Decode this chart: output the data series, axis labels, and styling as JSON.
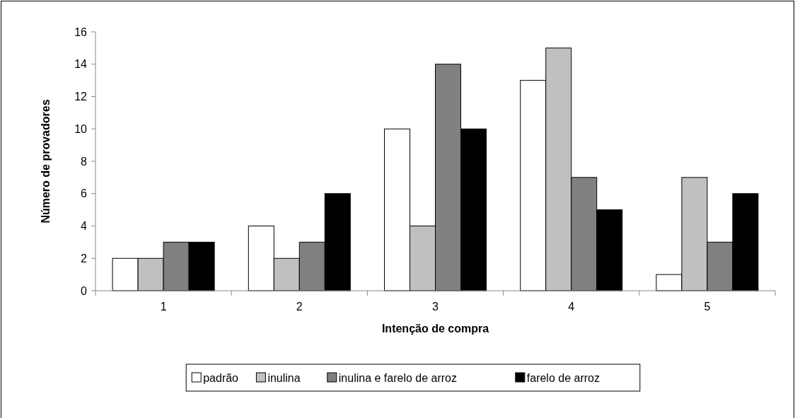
{
  "chart_data": {
    "type": "bar",
    "xlabel": "Intenção de compra",
    "ylabel": "Número de provadores",
    "categories": [
      "1",
      "2",
      "3",
      "4",
      "5"
    ],
    "series": [
      {
        "name": "padrão",
        "color": "#ffffff",
        "values": [
          2,
          4,
          10,
          13,
          1
        ]
      },
      {
        "name": "inulina",
        "color": "#c0c0c0",
        "values": [
          2,
          2,
          4,
          15,
          7
        ]
      },
      {
        "name": "inulina e farelo de arroz",
        "color": "#808080",
        "values": [
          3,
          3,
          14,
          7,
          3
        ]
      },
      {
        "name": "farelo de arroz",
        "color": "#000000",
        "values": [
          3,
          6,
          10,
          5,
          6
        ]
      }
    ],
    "ylim": [
      0,
      16
    ],
    "yticks": [
      0,
      2,
      4,
      6,
      8,
      10,
      12,
      14,
      16
    ],
    "grid": false,
    "legend": "bottom"
  }
}
